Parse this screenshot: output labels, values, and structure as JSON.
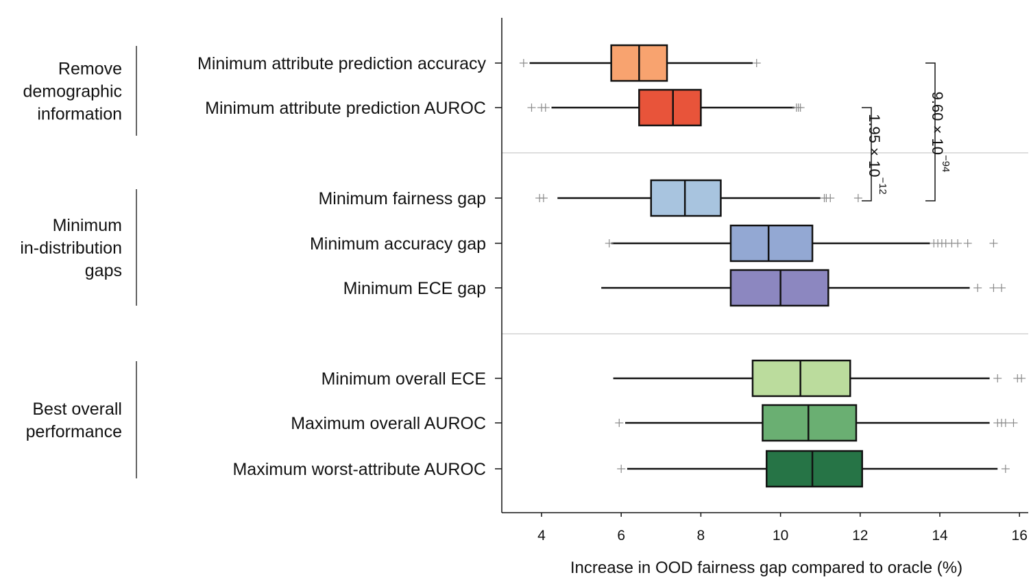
{
  "chart_data": {
    "type": "box",
    "xlabel": "Increase in OOD fairness gap compared to oracle (%)",
    "xlim": [
      3,
      16.2
    ],
    "xticks": [
      4,
      6,
      8,
      10,
      12,
      14,
      16
    ],
    "grid": false,
    "groups": [
      {
        "label_lines": [
          "Remove",
          "demographic",
          "information"
        ],
        "rows": [
          0,
          1
        ]
      },
      {
        "label_lines": [
          "Minimum",
          "in-distribution",
          "gaps"
        ],
        "rows": [
          2,
          3,
          4
        ]
      },
      {
        "label_lines": [
          "Best overall",
          "performance"
        ],
        "rows": [
          5,
          6,
          7
        ]
      }
    ],
    "series": [
      {
        "name": "Minimum attribute prediction accuracy",
        "color": "#f8a36f",
        "whisker_low": 3.7,
        "q1": 5.75,
        "median": 6.45,
        "q3": 7.15,
        "whisker_high": 9.3,
        "outliers": [
          3.55,
          9.4
        ]
      },
      {
        "name": "Minimum attribute prediction AUROC",
        "color": "#e8543a",
        "whisker_low": 4.25,
        "q1": 6.45,
        "median": 7.3,
        "q3": 8.0,
        "whisker_high": 10.35,
        "outliers": [
          3.75,
          4.0,
          4.1,
          10.4,
          10.45,
          10.5
        ]
      },
      {
        "name": "Minimum fairness gap",
        "color": "#a8c4df",
        "whisker_low": 4.4,
        "q1": 6.75,
        "median": 7.6,
        "q3": 8.5,
        "whisker_high": 11.0,
        "outliers": [
          3.95,
          4.05,
          11.1,
          11.15,
          11.25,
          11.95
        ]
      },
      {
        "name": "Minimum accuracy gap",
        "color": "#93a8d3",
        "whisker_low": 5.75,
        "q1": 8.75,
        "median": 9.7,
        "q3": 10.8,
        "whisker_high": 13.75,
        "outliers": [
          5.7,
          13.85,
          13.95,
          14.05,
          14.15,
          14.3,
          14.45,
          14.7,
          15.35
        ]
      },
      {
        "name": "Minimum ECE gap",
        "color": "#8c87c0",
        "whisker_low": 5.5,
        "q1": 8.75,
        "median": 10.0,
        "q3": 11.2,
        "whisker_high": 14.75,
        "outliers": [
          14.95,
          15.35,
          15.55
        ]
      },
      {
        "name": "Minimum overall ECE",
        "color": "#bbdc9d",
        "whisker_low": 5.8,
        "q1": 9.3,
        "median": 10.5,
        "q3": 11.75,
        "whisker_high": 15.25,
        "outliers": [
          15.45,
          15.95,
          16.05
        ]
      },
      {
        "name": "Maximum overall AUROC",
        "color": "#6aaf72",
        "whisker_low": 6.1,
        "q1": 9.55,
        "median": 10.7,
        "q3": 11.9,
        "whisker_high": 15.25,
        "outliers": [
          5.95,
          15.45,
          15.55,
          15.65,
          15.85
        ]
      },
      {
        "name": "Maximum worst-attribute AUROC",
        "color": "#267446",
        "whisker_low": 6.15,
        "q1": 9.65,
        "median": 10.8,
        "q3": 12.05,
        "whisker_high": 15.45,
        "outliers": [
          6.0,
          15.65
        ]
      }
    ],
    "annotations": [
      {
        "base": "1.95 × 10",
        "exponent": "−12",
        "from_row": 1,
        "to_row": 2
      },
      {
        "base": "9.60 × 10",
        "exponent": "−94",
        "from_row": 0,
        "to_row": 2
      }
    ]
  }
}
